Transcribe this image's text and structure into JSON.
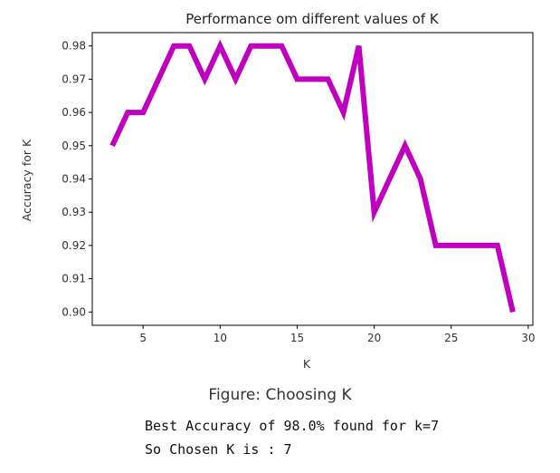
{
  "chart_data": {
    "type": "line",
    "title": "Performance om different values of K",
    "xlabel": "K",
    "ylabel": "Accuracy for K",
    "xlim": [
      1.7,
      30.3
    ],
    "ylim": [
      0.896,
      0.984
    ],
    "xticks": [
      5,
      10,
      15,
      20,
      25,
      30
    ],
    "yticks": [
      0.9,
      0.91,
      0.92,
      0.93,
      0.94,
      0.95,
      0.96,
      0.97,
      0.98
    ],
    "ytick_labels": [
      "0.90",
      "0.91",
      "0.92",
      "0.93",
      "0.94",
      "0.95",
      "0.96",
      "0.97",
      "0.98"
    ],
    "grid": false,
    "line_color": "#bf00bf",
    "series": [
      {
        "x": [
          3,
          4,
          5,
          6,
          7,
          8,
          9,
          10,
          11,
          12,
          13,
          14,
          15,
          16,
          17,
          18,
          19,
          20,
          21,
          22,
          23,
          24,
          25,
          26,
          27,
          28,
          29
        ],
        "values": [
          0.95,
          0.96,
          0.96,
          0.97,
          0.98,
          0.98,
          0.97,
          0.98,
          0.97,
          0.98,
          0.98,
          0.98,
          0.97,
          0.97,
          0.97,
          0.96,
          0.98,
          0.93,
          0.94,
          0.95,
          0.94,
          0.92,
          0.92,
          0.92,
          0.92,
          0.92,
          0.9
        ]
      }
    ]
  },
  "caption": "Figure: Choosing K",
  "output": {
    "line1": "Best Accuracy of 98.0% found for k=7",
    "line2": "So Chosen K is : 7"
  }
}
